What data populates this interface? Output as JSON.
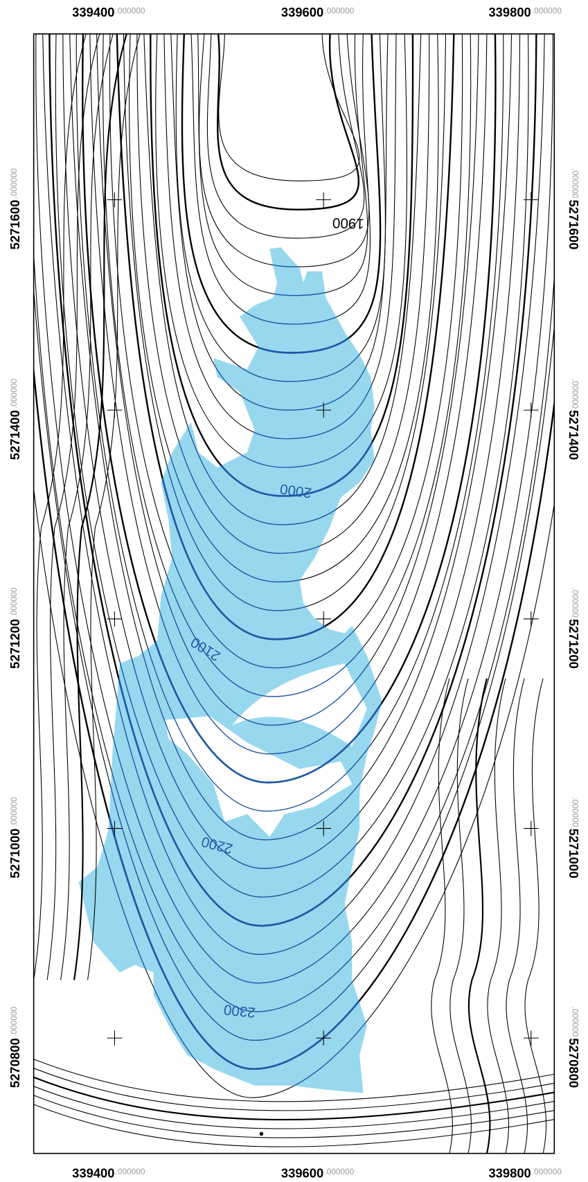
{
  "x_labels": [
    {
      "main": "339400",
      "suffix": ".000000"
    },
    {
      "main": "339600",
      "suffix": ".000000"
    },
    {
      "main": "339800",
      "suffix": ".000000"
    }
  ],
  "y_labels": [
    {
      "main": "5271600",
      "suffix": ".000000"
    },
    {
      "main": "5271400",
      "suffix": ".000000"
    },
    {
      "main": "5271200",
      "suffix": ".000000"
    },
    {
      "main": "5271000",
      "suffix": ".000000"
    },
    {
      "main": "5270800",
      "suffix": ".000000"
    }
  ],
  "contour_labels": [
    "1900",
    "2000",
    "2100",
    "2200",
    "2300"
  ]
}
